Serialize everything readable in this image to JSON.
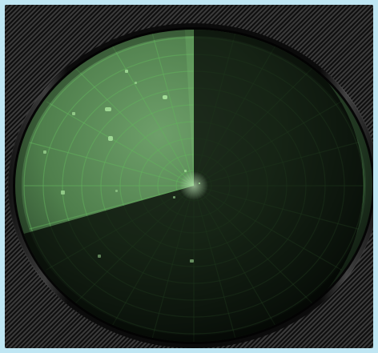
{
  "scene": {
    "description_name": "radar-screen",
    "colors": {
      "frame": "#bfe6f3",
      "bezel_dark": "#0e0e0e",
      "scope_green": "#4f7f4c",
      "grid_green": "#63b35d",
      "shadow_black": "#000000",
      "blip_green": "#a9e49d"
    }
  }
}
